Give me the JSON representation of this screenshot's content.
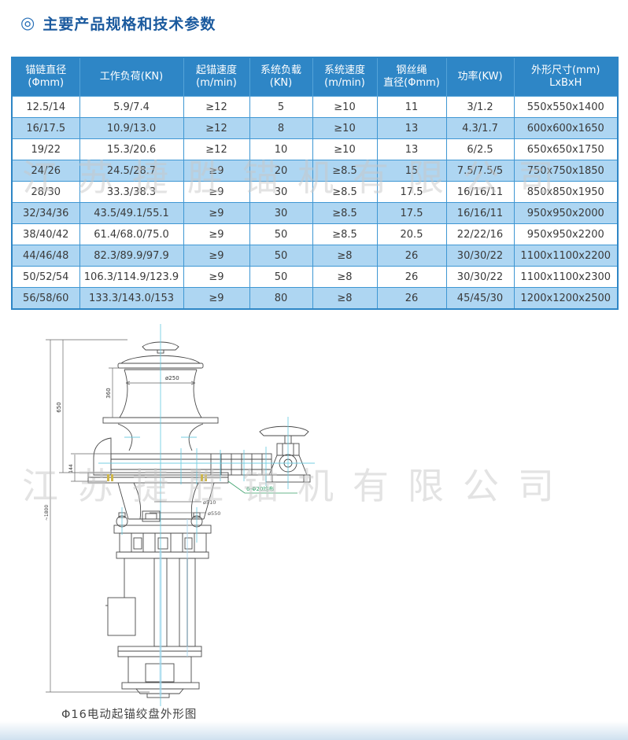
{
  "page": {
    "title": "主要产品规格和技术参数",
    "title_icon": "◎",
    "watermark": "江苏捷胜锚机有限公司"
  },
  "colors": {
    "header_bg": "#2e86c6",
    "row_alt_bg": "#aed6f2",
    "table_border": "#3f97d3",
    "title_color": "#1b5a9e",
    "watermark_color": "#c8c8c8",
    "centerline_cyan": "#66c9de",
    "note_green": "#2fa36a",
    "bolt_yellow": "#cdb54a"
  },
  "table": {
    "headers": [
      "锚链直径\n(Φmm)",
      "工作负荷(KN)",
      "起锚速度\n(m/min)",
      "系统负载\n(KN)",
      "系统速度\n(m/min)",
      "钢丝绳\n直径(Φmm)",
      "功率(KW)",
      "外形尺寸(mm)\nLxBxH"
    ],
    "rows": [
      [
        "12.5/14",
        "5.9/7.4",
        "≥12",
        "5",
        "≥10",
        "11",
        "3/1.2",
        "550x550x1400"
      ],
      [
        "16/17.5",
        "10.9/13.0",
        "≥12",
        "8",
        "≥10",
        "13",
        "4.3/1.7",
        "600x600x1650"
      ],
      [
        "19/22",
        "15.3/20.6",
        "≥12",
        "10",
        "≥10",
        "13",
        "6/2.5",
        "650x650x1750"
      ],
      [
        "24/26",
        "24.5/28.7",
        "≥9",
        "20",
        "≥8.5",
        "15",
        "7.5/7.5/5",
        "750x750x1850"
      ],
      [
        "28/30",
        "33.3/38.3",
        "≥9",
        "30",
        "≥8.5",
        "17.5",
        "16/16/11",
        "850x850x1950"
      ],
      [
        "32/34/36",
        "43.5/49.1/55.1",
        "≥9",
        "30",
        "≥8.5",
        "17.5",
        "16/16/11",
        "950x950x2000"
      ],
      [
        "38/40/42",
        "61.4/68.0/75.0",
        "≥9",
        "50",
        "≥8.5",
        "20.5",
        "22/22/16",
        "950x950x2200"
      ],
      [
        "44/46/48",
        "82.3/89.9/97.9",
        "≥9",
        "50",
        "≥8",
        "26",
        "30/30/22",
        "1100x1100x2200"
      ],
      [
        "50/52/54",
        "106.3/114.9/123.9",
        "≥9",
        "50",
        "≥8",
        "26",
        "30/30/22",
        "1100x1100x2300"
      ],
      [
        "56/58/60",
        "133.3/143.0/153",
        "≥9",
        "80",
        "≥8",
        "26",
        "45/45/30",
        "1200x1200x2500"
      ]
    ]
  },
  "drawing": {
    "caption": "Φ16电动起锚绞盘外形图",
    "dims": {
      "drum_diameter": "ø250",
      "drum_height": "360",
      "upper_height": "650",
      "beam_height": "144",
      "total_height": "~1800",
      "bolt_note": "6-Φ20均布",
      "flange_d1": "ø510",
      "flange_d2": "ø550"
    }
  }
}
